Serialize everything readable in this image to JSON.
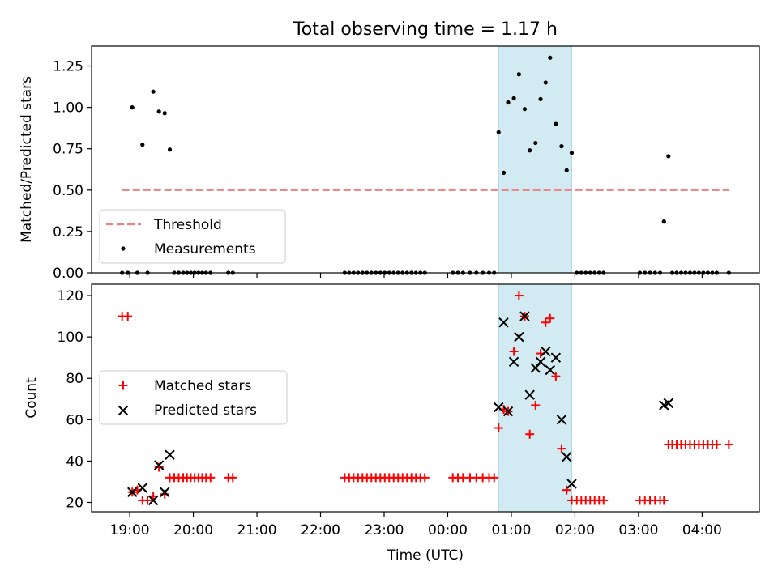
{
  "title": "Total observing time = 1.17 h",
  "colors": {
    "threshold": "#f08080",
    "measurements": "#000000",
    "matched": "#ff0000",
    "predicted": "#000000",
    "span": "#add8e6"
  },
  "chart_data": [
    {
      "type": "scatter",
      "ylabel": "Matched/Predicted stars",
      "xlim": [
        18.4,
        28.9
      ],
      "ylim": [
        0,
        1.37
      ],
      "yticks": [
        0.0,
        0.25,
        0.5,
        0.75,
        1.0,
        1.25
      ],
      "ytick_labels": [
        "0.00",
        "0.25",
        "0.50",
        "0.75",
        "1.00",
        "1.25"
      ],
      "span": [
        24.8,
        25.95
      ],
      "legend": {
        "position": "lower-left",
        "entries": [
          "Threshold",
          "Measurements"
        ]
      },
      "threshold": {
        "name": "Threshold",
        "style": "dashed",
        "x": [
          18.88,
          28.42
        ],
        "y": 0.5
      },
      "series": [
        {
          "name": "Measurements",
          "marker": "dot",
          "points": [
            [
              18.88,
              0
            ],
            [
              18.97,
              0
            ],
            [
              19.04,
              1.0
            ],
            [
              19.12,
              0
            ],
            [
              19.2,
              0.775
            ],
            [
              19.28,
              0
            ],
            [
              19.37,
              1.095
            ],
            [
              19.46,
              0.975
            ],
            [
              19.55,
              0.965
            ],
            [
              19.63,
              0.745
            ],
            [
              19.7,
              0
            ],
            [
              19.77,
              0
            ],
            [
              19.84,
              0
            ],
            [
              19.9,
              0
            ],
            [
              19.96,
              0
            ],
            [
              20.02,
              0
            ],
            [
              20.08,
              0
            ],
            [
              20.14,
              0
            ],
            [
              20.2,
              0
            ],
            [
              20.27,
              0
            ],
            [
              20.55,
              0
            ],
            [
              20.62,
              0
            ],
            [
              22.38,
              0
            ],
            [
              22.45,
              0
            ],
            [
              22.52,
              0
            ],
            [
              22.59,
              0
            ],
            [
              22.66,
              0
            ],
            [
              22.73,
              0
            ],
            [
              22.8,
              0
            ],
            [
              22.87,
              0
            ],
            [
              22.94,
              0
            ],
            [
              23.01,
              0
            ],
            [
              23.08,
              0
            ],
            [
              23.15,
              0
            ],
            [
              23.22,
              0
            ],
            [
              23.29,
              0
            ],
            [
              23.36,
              0
            ],
            [
              23.43,
              0
            ],
            [
              23.5,
              0
            ],
            [
              23.57,
              0
            ],
            [
              23.64,
              0
            ],
            [
              24.08,
              0
            ],
            [
              24.16,
              0
            ],
            [
              24.24,
              0
            ],
            [
              24.35,
              0
            ],
            [
              24.45,
              0
            ],
            [
              24.55,
              0
            ],
            [
              24.65,
              0
            ],
            [
              24.73,
              0
            ],
            [
              24.8,
              0.85
            ],
            [
              24.88,
              0.605
            ],
            [
              24.95,
              1.03
            ],
            [
              25.04,
              1.055
            ],
            [
              25.12,
              1.2
            ],
            [
              25.21,
              0.99
            ],
            [
              25.29,
              0.74
            ],
            [
              25.38,
              0.785
            ],
            [
              25.46,
              1.05
            ],
            [
              25.54,
              1.15
            ],
            [
              25.61,
              1.3
            ],
            [
              25.7,
              0.9
            ],
            [
              25.79,
              0.765
            ],
            [
              25.87,
              0.62
            ],
            [
              25.95,
              0.725
            ],
            [
              26.03,
              0
            ],
            [
              26.1,
              0
            ],
            [
              26.17,
              0
            ],
            [
              26.24,
              0
            ],
            [
              26.31,
              0
            ],
            [
              26.38,
              0
            ],
            [
              26.45,
              0
            ],
            [
              27.02,
              0
            ],
            [
              27.1,
              0
            ],
            [
              27.18,
              0
            ],
            [
              27.26,
              0
            ],
            [
              27.34,
              0
            ],
            [
              27.4,
              0.31
            ],
            [
              27.47,
              0.705
            ],
            [
              27.53,
              0
            ],
            [
              27.6,
              0
            ],
            [
              27.67,
              0
            ],
            [
              27.74,
              0
            ],
            [
              27.81,
              0
            ],
            [
              27.88,
              0
            ],
            [
              27.95,
              0
            ],
            [
              28.02,
              0
            ],
            [
              28.09,
              0
            ],
            [
              28.16,
              0
            ],
            [
              28.23,
              0
            ],
            [
              28.42,
              0
            ]
          ]
        }
      ]
    },
    {
      "type": "scatter",
      "xlabel": "Time (UTC)",
      "ylabel": "Count",
      "xlim": [
        18.4,
        28.9
      ],
      "ylim": [
        15.5,
        125.5
      ],
      "yticks": [
        20,
        40,
        60,
        80,
        100,
        120
      ],
      "ytick_labels": [
        "20",
        "40",
        "60",
        "80",
        "100",
        "120"
      ],
      "xticks": [
        19,
        20,
        21,
        22,
        23,
        24,
        25,
        26,
        27,
        28
      ],
      "xtick_labels": [
        "19:00",
        "20:00",
        "21:00",
        "22:00",
        "23:00",
        "00:00",
        "01:00",
        "02:00",
        "03:00",
        "04:00"
      ],
      "span": [
        24.8,
        25.95
      ],
      "legend": {
        "position": "center-left",
        "entries": [
          "Matched stars",
          "Predicted stars"
        ]
      },
      "series": [
        {
          "name": "Matched stars",
          "marker": "plus",
          "points": [
            [
              18.88,
              110
            ],
            [
              18.97,
              110
            ],
            [
              19.04,
              25
            ],
            [
              19.12,
              26
            ],
            [
              19.2,
              21
            ],
            [
              19.28,
              21
            ],
            [
              19.37,
              23
            ],
            [
              19.46,
              37
            ],
            [
              19.55,
              24
            ],
            [
              19.63,
              32
            ],
            [
              19.7,
              32
            ],
            [
              19.77,
              32
            ],
            [
              19.84,
              32
            ],
            [
              19.9,
              32
            ],
            [
              19.96,
              32
            ],
            [
              20.02,
              32
            ],
            [
              20.08,
              32
            ],
            [
              20.14,
              32
            ],
            [
              20.2,
              32
            ],
            [
              20.27,
              32
            ],
            [
              20.55,
              32
            ],
            [
              20.62,
              32
            ],
            [
              22.38,
              32
            ],
            [
              22.45,
              32
            ],
            [
              22.52,
              32
            ],
            [
              22.59,
              32
            ],
            [
              22.66,
              32
            ],
            [
              22.73,
              32
            ],
            [
              22.8,
              32
            ],
            [
              22.87,
              32
            ],
            [
              22.94,
              32
            ],
            [
              23.01,
              32
            ],
            [
              23.08,
              32
            ],
            [
              23.15,
              32
            ],
            [
              23.22,
              32
            ],
            [
              23.29,
              32
            ],
            [
              23.36,
              32
            ],
            [
              23.43,
              32
            ],
            [
              23.5,
              32
            ],
            [
              23.57,
              32
            ],
            [
              23.64,
              32
            ],
            [
              24.08,
              32
            ],
            [
              24.16,
              32
            ],
            [
              24.24,
              32
            ],
            [
              24.35,
              32
            ],
            [
              24.45,
              32
            ],
            [
              24.55,
              32
            ],
            [
              24.65,
              32
            ],
            [
              24.73,
              32
            ],
            [
              24.8,
              56
            ],
            [
              24.88,
              65
            ],
            [
              24.95,
              64
            ],
            [
              25.04,
              93
            ],
            [
              25.12,
              120
            ],
            [
              25.21,
              110
            ],
            [
              25.29,
              53
            ],
            [
              25.38,
              67
            ],
            [
              25.46,
              92
            ],
            [
              25.54,
              107
            ],
            [
              25.61,
              109
            ],
            [
              25.7,
              81
            ],
            [
              25.79,
              46
            ],
            [
              25.87,
              26
            ],
            [
              25.95,
              21
            ],
            [
              26.03,
              21
            ],
            [
              26.1,
              21
            ],
            [
              26.17,
              21
            ],
            [
              26.24,
              21
            ],
            [
              26.31,
              21
            ],
            [
              26.38,
              21
            ],
            [
              26.45,
              21
            ],
            [
              27.02,
              21
            ],
            [
              27.1,
              21
            ],
            [
              27.18,
              21
            ],
            [
              27.26,
              21
            ],
            [
              27.34,
              21
            ],
            [
              27.4,
              21
            ],
            [
              27.47,
              48
            ],
            [
              27.53,
              48
            ],
            [
              27.6,
              48
            ],
            [
              27.67,
              48
            ],
            [
              27.74,
              48
            ],
            [
              27.81,
              48
            ],
            [
              27.88,
              48
            ],
            [
              27.95,
              48
            ],
            [
              28.02,
              48
            ],
            [
              28.09,
              48
            ],
            [
              28.16,
              48
            ],
            [
              28.23,
              48
            ],
            [
              28.42,
              48
            ]
          ]
        },
        {
          "name": "Predicted stars",
          "marker": "x",
          "points": [
            [
              19.04,
              25
            ],
            [
              19.2,
              27
            ],
            [
              19.37,
              21
            ],
            [
              19.46,
              38
            ],
            [
              19.55,
              25
            ],
            [
              19.63,
              43
            ],
            [
              24.8,
              66
            ],
            [
              24.88,
              107
            ],
            [
              24.95,
              64
            ],
            [
              25.04,
              88
            ],
            [
              25.12,
              100
            ],
            [
              25.21,
              110
            ],
            [
              25.29,
              72
            ],
            [
              25.38,
              85
            ],
            [
              25.46,
              88
            ],
            [
              25.54,
              93
            ],
            [
              25.61,
              84
            ],
            [
              25.7,
              90
            ],
            [
              25.79,
              60
            ],
            [
              25.87,
              42
            ],
            [
              25.95,
              29
            ],
            [
              27.4,
              67
            ],
            [
              27.47,
              68
            ]
          ]
        }
      ]
    }
  ]
}
